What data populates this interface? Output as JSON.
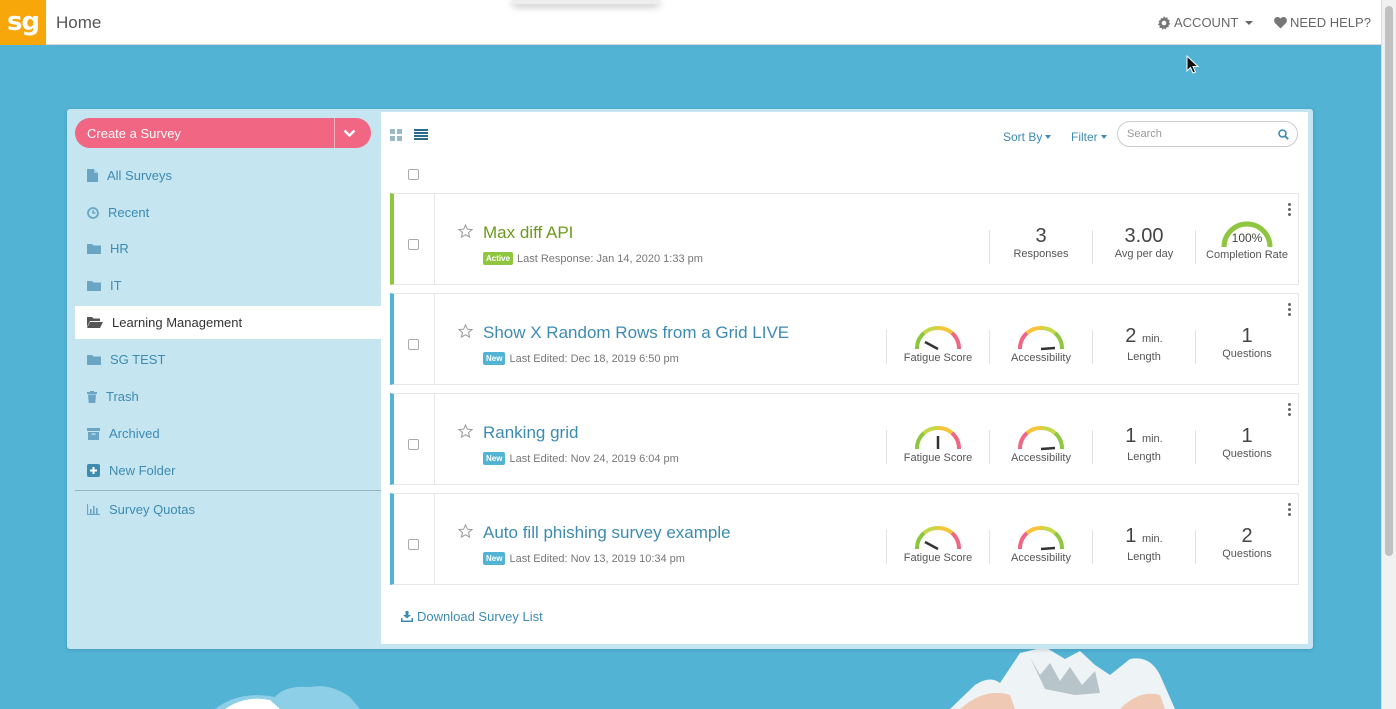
{
  "topbar": {
    "logo": "sg",
    "title": "Home",
    "account_label": "ACCOUNT",
    "help_label": "NEED HELP?"
  },
  "sidebar": {
    "create_label": "Create a Survey",
    "items": [
      {
        "label": "All Surveys",
        "icon": "document-icon"
      },
      {
        "label": "Recent",
        "icon": "clock-icon"
      },
      {
        "label": "HR",
        "icon": "folder-icon"
      },
      {
        "label": "IT",
        "icon": "folder-icon"
      },
      {
        "label": "Learning Management",
        "icon": "folder-open-icon",
        "active": true
      },
      {
        "label": "SG TEST",
        "icon": "folder-icon"
      },
      {
        "label": "Trash",
        "icon": "trash-icon"
      },
      {
        "label": "Archived",
        "icon": "archive-icon"
      },
      {
        "label": "New Folder",
        "icon": "plus-square-icon"
      },
      {
        "label": "Survey Quotas",
        "icon": "bar-chart-icon"
      }
    ]
  },
  "toolbar": {
    "sort_label": "Sort By",
    "filter_label": "Filter",
    "search_placeholder": "Search"
  },
  "surveys": [
    {
      "title": "Max diff API",
      "status": "Active",
      "meta": "Last Response: Jan 14, 2020 1:33 pm",
      "responses": "3",
      "responses_label": "Responses",
      "avg": "3.00",
      "avg_label": "Avg per day",
      "completion": "100%",
      "completion_value": 1.0,
      "completion_label": "Completion Rate"
    },
    {
      "title": "Show X Random Rows from a Grid LIVE",
      "status": "New",
      "meta": "Last Edited: Dec 18, 2019 6:50 pm",
      "fatigue_label": "Fatigue Score",
      "access_label": "Accessibility",
      "length": "2",
      "length_unit": "min.",
      "length_label": "Length",
      "questions": "1",
      "questions_label": "Questions"
    },
    {
      "title": "Ranking grid",
      "status": "New",
      "meta": "Last Edited: Nov 24, 2019 6:04 pm",
      "fatigue_label": "Fatigue Score",
      "access_label": "Accessibility",
      "length": "1",
      "length_unit": "min.",
      "length_label": "Length",
      "questions": "1",
      "questions_label": "Questions"
    },
    {
      "title": "Auto fill phishing survey example",
      "status": "New",
      "meta": "Last Edited: Nov 13, 2019 10:34 pm",
      "fatigue_label": "Fatigue Score",
      "access_label": "Accessibility",
      "length": "1",
      "length_unit": "min.",
      "length_label": "Length",
      "questions": "2",
      "questions_label": "Questions"
    }
  ],
  "download_label": "Download Survey List",
  "colors": {
    "brand_orange": "#f7a70a",
    "create_pink": "#f06683",
    "link_blue": "#3d8bb1",
    "active_green": "#8ec63f",
    "background_blue": "#52b3d5"
  }
}
